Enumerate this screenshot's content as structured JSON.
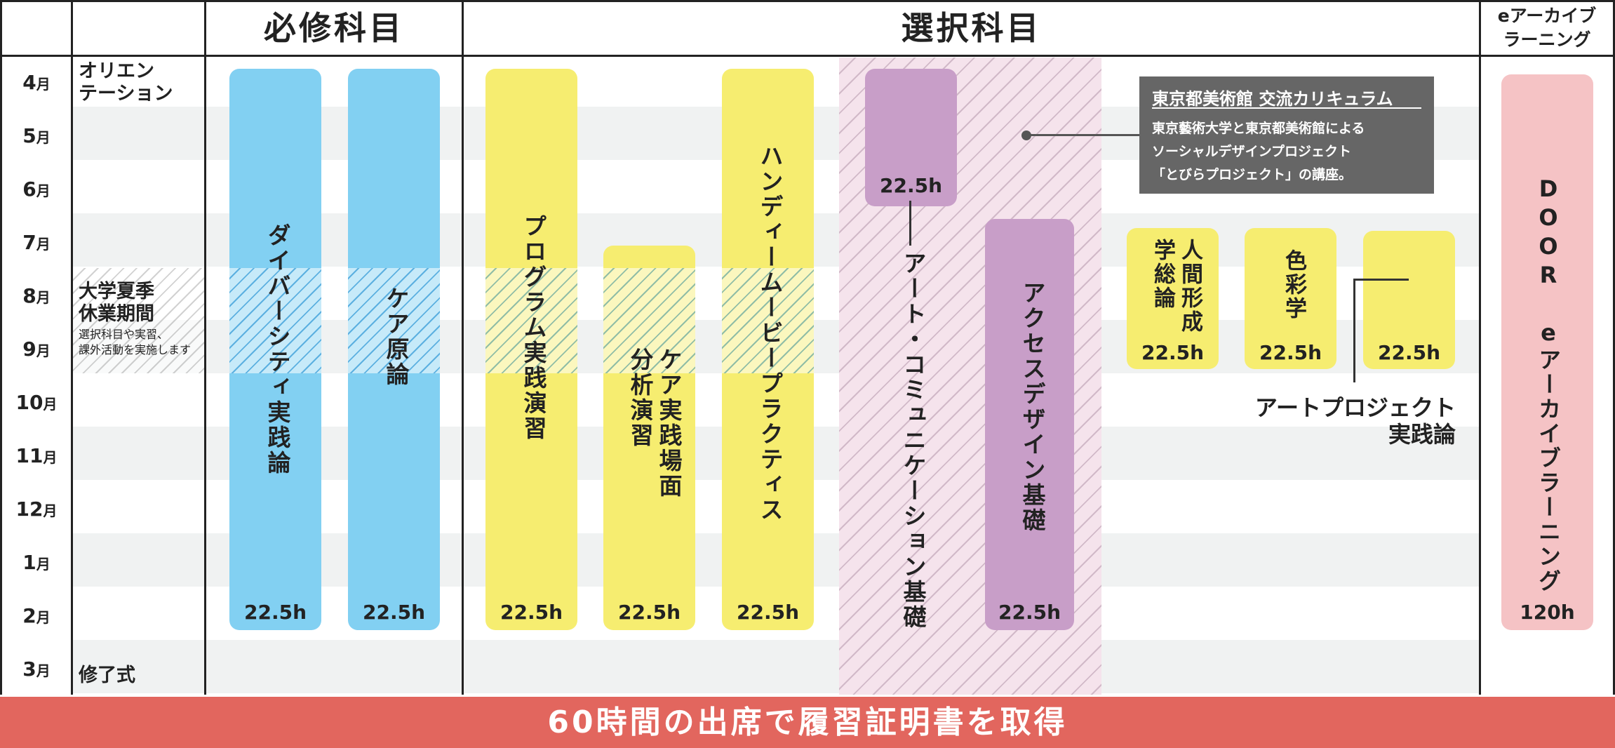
{
  "headers": {
    "required": "必修科目",
    "elective": "選択科目",
    "elearning_line1": "eアーカイブ",
    "elearning_line2": "ラーニング"
  },
  "months": [
    "4",
    "5",
    "6",
    "7",
    "8",
    "9",
    "10",
    "11",
    "12",
    "1",
    "2",
    "3"
  ],
  "month_suffix": "月",
  "events": {
    "orientation_line1": "オリエン",
    "orientation_line2": "テーション",
    "summer_line1": "大学夏季",
    "summer_line2": "休業期間",
    "summer_note_line1": "選択科目や実習、",
    "summer_note_line2": "課外活動を実施します",
    "graduation": "修了式"
  },
  "courses": {
    "diversity": {
      "name": "ダイバーシティ実践論",
      "hours": "22.5h"
    },
    "care_theory": {
      "name": "ケア原論",
      "hours": "22.5h"
    },
    "program": {
      "name": "プログラム実践演習",
      "hours": "22.5h"
    },
    "care_analysis": {
      "name_line1": "ケア実践場面",
      "name_line2": "分析演習",
      "hours": "22.5h"
    },
    "handy": {
      "name": "ハンディームービープラクティス",
      "hours": "22.5h"
    },
    "art_comm": {
      "name": "アート・コミュニケーション基礎",
      "hours": "22.5h"
    },
    "access": {
      "name": "アクセスデザイン基礎",
      "hours": "22.5h"
    },
    "human": {
      "name_line1": "人間形成",
      "name_line2": "学総論",
      "hours": "22.5h"
    },
    "color": {
      "name": "色彩学",
      "hours": "22.5h"
    },
    "art_project": {
      "name_line1": "アートプロジェクト",
      "name_line2": "実践論",
      "hours": "22.5h"
    },
    "door": {
      "name": "DOOR eアーカイブラーニング",
      "hours": "120h"
    }
  },
  "callout": {
    "title": "東京都美術館 交流カリキュラム",
    "line1": "東京藝術大学と東京都美術館による",
    "line2": "ソーシャルデザインプロジェクト",
    "line3": "「とびらプロジェクト」の講座。"
  },
  "footer": "60時間の出席で履習証明書を取得",
  "colors": {
    "required": "#82d0f2",
    "elective": "#f6ed70",
    "museum": "#c89ec8",
    "elearning": "#f5c3c5",
    "footer": "#e2665e",
    "callout": "#666666"
  }
}
